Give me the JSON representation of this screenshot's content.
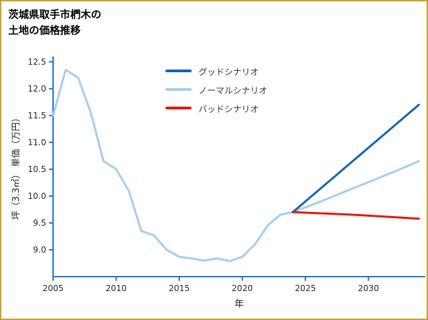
{
  "chart_data": {
    "type": "line",
    "title": "茨城県取手市椚木の土地の価格推移",
    "title_lines": [
      "茨城県取手市椚木の",
      "土地の価格推移"
    ],
    "xlabel": "年",
    "ylabel": "坪（3.3㎡） 単価（万円）",
    "xlim": [
      2005,
      2034.5
    ],
    "ylim": [
      8.5,
      12.6
    ],
    "xticks": [
      2005,
      2010,
      2015,
      2020,
      2025,
      2030
    ],
    "yticks": [
      9.0,
      9.5,
      10.0,
      10.5,
      11.0,
      11.5,
      12.0,
      12.5
    ],
    "grid": false,
    "legend_position": "upper-center",
    "colors": {
      "axis": "#2176c7",
      "frame_border": "#d19e2c",
      "tick_label": "#262626"
    },
    "series": [
      {
        "name": "グッドシナリオ",
        "color": "#1464b4",
        "x": [
          2024,
          2026,
          2028,
          2030,
          2032,
          2034
        ],
        "y": [
          9.7,
          10.1,
          10.5,
          10.9,
          11.3,
          11.7
        ]
      },
      {
        "name": "ノーマルシナリオ",
        "color": "#a5cdee",
        "x": [
          2005,
          2006,
          2007,
          2008,
          2009,
          2010,
          2011,
          2012,
          2013,
          2014,
          2015,
          2016,
          2017,
          2018,
          2019,
          2020,
          2021,
          2022,
          2023,
          2024,
          2026,
          2028,
          2030,
          2032,
          2034
        ],
        "y": [
          11.5,
          12.35,
          12.2,
          11.55,
          10.65,
          10.5,
          10.1,
          9.35,
          9.27,
          9.0,
          8.87,
          8.84,
          8.8,
          8.84,
          8.79,
          8.87,
          9.1,
          9.45,
          9.65,
          9.7,
          9.88,
          10.07,
          10.26,
          10.45,
          10.65
        ]
      },
      {
        "name": "バッドシナリオ",
        "color": "#e8160c",
        "x": [
          2024,
          2029,
          2034
        ],
        "y": [
          9.7,
          9.65,
          9.58
        ]
      }
    ]
  }
}
